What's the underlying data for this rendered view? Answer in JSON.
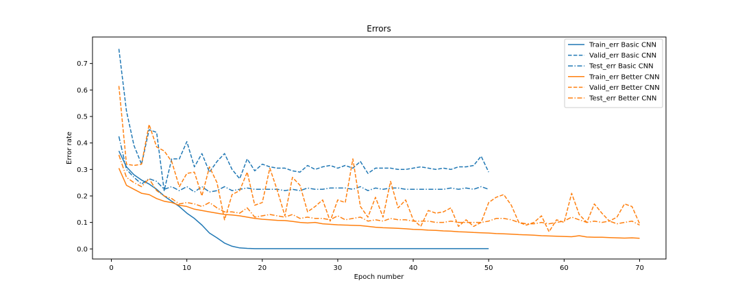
{
  "chart_data": {
    "type": "line",
    "title": "Errors",
    "xlabel": "Epoch number",
    "ylabel": "Error rate",
    "xlim": [
      -2.5,
      73.5
    ],
    "ylim": [
      -0.038,
      0.8
    ],
    "xticks": [
      0,
      10,
      20,
      30,
      40,
      50,
      60,
      70
    ],
    "yticks": [
      0.0,
      0.1,
      0.2,
      0.3,
      0.4,
      0.5,
      0.6,
      0.7
    ],
    "legend_position": "top-right",
    "grid": false,
    "series": [
      {
        "name": "Train_err Basic CNN",
        "color": "#1f77b4",
        "style": "solid",
        "x": [
          1,
          2,
          3,
          4,
          5,
          6,
          7,
          8,
          9,
          10,
          11,
          12,
          13,
          14,
          15,
          16,
          17,
          18,
          19,
          20,
          21,
          22,
          23,
          24,
          25,
          26,
          27,
          28,
          29,
          30,
          31,
          32,
          33,
          34,
          35,
          36,
          37,
          38,
          39,
          40,
          41,
          42,
          43,
          44,
          45,
          46,
          47,
          48,
          49,
          50
        ],
        "values": [
          0.37,
          0.31,
          0.28,
          0.26,
          0.245,
          0.225,
          0.2,
          0.18,
          0.16,
          0.135,
          0.115,
          0.09,
          0.06,
          0.042,
          0.022,
          0.01,
          0.004,
          0.002,
          0.001,
          0.001,
          0.001,
          0.001,
          0.001,
          0.001,
          0.001,
          0.001,
          0.001,
          0.001,
          0.001,
          0.001,
          0.001,
          0.001,
          0.001,
          0.001,
          0.001,
          0.001,
          0.001,
          0.001,
          0.001,
          0.001,
          0.001,
          0.001,
          0.001,
          0.001,
          0.001,
          0.001,
          0.001,
          0.001,
          0.001,
          0.001
        ]
      },
      {
        "name": "Valid_err Basic CNN",
        "color": "#1f77b4",
        "style": "dashed",
        "x": [
          1,
          2,
          3,
          4,
          5,
          6,
          7,
          8,
          9,
          10,
          11,
          12,
          13,
          14,
          15,
          16,
          17,
          18,
          19,
          20,
          21,
          22,
          23,
          24,
          25,
          26,
          27,
          28,
          29,
          30,
          31,
          32,
          33,
          34,
          35,
          36,
          37,
          38,
          39,
          40,
          41,
          42,
          43,
          44,
          45,
          46,
          47,
          48,
          49,
          50
        ],
        "values": [
          0.755,
          0.52,
          0.39,
          0.32,
          0.45,
          0.44,
          0.22,
          0.34,
          0.34,
          0.405,
          0.31,
          0.36,
          0.29,
          0.33,
          0.36,
          0.3,
          0.265,
          0.34,
          0.295,
          0.32,
          0.31,
          0.305,
          0.305,
          0.295,
          0.29,
          0.315,
          0.3,
          0.31,
          0.315,
          0.305,
          0.315,
          0.305,
          0.33,
          0.285,
          0.305,
          0.305,
          0.305,
          0.3,
          0.3,
          0.305,
          0.31,
          0.305,
          0.3,
          0.305,
          0.3,
          0.31,
          0.31,
          0.315,
          0.35,
          0.29
        ]
      },
      {
        "name": "Test_err Basic CNN",
        "color": "#1f77b4",
        "style": "dashdot",
        "x": [
          1,
          2,
          3,
          4,
          5,
          6,
          7,
          8,
          9,
          10,
          11,
          12,
          13,
          14,
          15,
          16,
          17,
          18,
          19,
          20,
          21,
          22,
          23,
          24,
          25,
          26,
          27,
          28,
          29,
          30,
          31,
          32,
          33,
          34,
          35,
          36,
          37,
          38,
          39,
          40,
          41,
          42,
          43,
          44,
          45,
          46,
          47,
          48,
          49,
          50
        ],
        "values": [
          0.425,
          0.3,
          0.27,
          0.245,
          0.265,
          0.255,
          0.225,
          0.235,
          0.22,
          0.235,
          0.215,
          0.235,
          0.215,
          0.22,
          0.235,
          0.22,
          0.225,
          0.23,
          0.225,
          0.225,
          0.225,
          0.225,
          0.22,
          0.225,
          0.22,
          0.23,
          0.225,
          0.225,
          0.23,
          0.23,
          0.23,
          0.225,
          0.235,
          0.22,
          0.23,
          0.225,
          0.23,
          0.23,
          0.225,
          0.225,
          0.225,
          0.225,
          0.225,
          0.225,
          0.23,
          0.225,
          0.23,
          0.225,
          0.235,
          0.225
        ]
      },
      {
        "name": "Train_err Better CNN",
        "color": "#ff7f0e",
        "style": "solid",
        "x": [
          1,
          2,
          3,
          4,
          5,
          6,
          7,
          8,
          9,
          10,
          11,
          12,
          13,
          14,
          15,
          16,
          17,
          18,
          19,
          20,
          21,
          22,
          23,
          24,
          25,
          26,
          27,
          28,
          29,
          30,
          31,
          32,
          33,
          34,
          35,
          36,
          37,
          38,
          39,
          40,
          41,
          42,
          43,
          44,
          45,
          46,
          47,
          48,
          49,
          50,
          51,
          52,
          53,
          54,
          55,
          56,
          57,
          58,
          59,
          60,
          61,
          62,
          63,
          64,
          65,
          66,
          67,
          68,
          69,
          70
        ],
        "values": [
          0.305,
          0.24,
          0.225,
          0.21,
          0.205,
          0.19,
          0.18,
          0.175,
          0.165,
          0.16,
          0.15,
          0.145,
          0.14,
          0.135,
          0.13,
          0.128,
          0.125,
          0.12,
          0.115,
          0.112,
          0.11,
          0.108,
          0.107,
          0.104,
          0.1,
          0.098,
          0.1,
          0.095,
          0.093,
          0.091,
          0.09,
          0.089,
          0.088,
          0.085,
          0.082,
          0.08,
          0.079,
          0.078,
          0.076,
          0.074,
          0.073,
          0.071,
          0.07,
          0.068,
          0.067,
          0.065,
          0.064,
          0.062,
          0.061,
          0.06,
          0.058,
          0.057,
          0.056,
          0.054,
          0.053,
          0.052,
          0.05,
          0.049,
          0.048,
          0.047,
          0.046,
          0.05,
          0.045,
          0.044,
          0.044,
          0.043,
          0.042,
          0.041,
          0.042,
          0.04
        ]
      },
      {
        "name": "Valid_err Better CNN",
        "color": "#ff7f0e",
        "style": "dashed",
        "x": [
          1,
          2,
          3,
          4,
          5,
          6,
          7,
          8,
          9,
          10,
          11,
          12,
          13,
          14,
          15,
          16,
          17,
          18,
          19,
          20,
          21,
          22,
          23,
          24,
          25,
          26,
          27,
          28,
          29,
          30,
          31,
          32,
          33,
          34,
          35,
          36,
          37,
          38,
          39,
          40,
          41,
          42,
          43,
          44,
          45,
          46,
          47,
          48,
          49,
          50,
          51,
          52,
          53,
          54,
          55,
          56,
          57,
          58,
          59,
          60,
          61,
          62,
          63,
          64,
          65,
          66,
          67,
          68,
          69,
          70
        ],
        "values": [
          0.615,
          0.32,
          0.315,
          0.32,
          0.47,
          0.385,
          0.37,
          0.33,
          0.235,
          0.285,
          0.29,
          0.2,
          0.31,
          0.25,
          0.11,
          0.205,
          0.22,
          0.29,
          0.165,
          0.175,
          0.305,
          0.22,
          0.125,
          0.27,
          0.24,
          0.14,
          0.16,
          0.185,
          0.105,
          0.185,
          0.175,
          0.34,
          0.16,
          0.12,
          0.195,
          0.12,
          0.255,
          0.155,
          0.185,
          0.11,
          0.085,
          0.145,
          0.135,
          0.14,
          0.155,
          0.085,
          0.11,
          0.085,
          0.1,
          0.175,
          0.195,
          0.205,
          0.165,
          0.1,
          0.09,
          0.1,
          0.125,
          0.065,
          0.11,
          0.1,
          0.21,
          0.13,
          0.1,
          0.17,
          0.135,
          0.105,
          0.12,
          0.17,
          0.16,
          0.095
        ]
      },
      {
        "name": "Test_err Better CNN",
        "color": "#ff7f0e",
        "style": "dashdot",
        "x": [
          1,
          2,
          3,
          4,
          5,
          6,
          7,
          8,
          9,
          10,
          11,
          12,
          13,
          14,
          15,
          16,
          17,
          18,
          19,
          20,
          21,
          22,
          23,
          24,
          25,
          26,
          27,
          28,
          29,
          30,
          31,
          32,
          33,
          34,
          35,
          36,
          37,
          38,
          39,
          40,
          41,
          42,
          43,
          44,
          45,
          46,
          47,
          48,
          49,
          50,
          51,
          52,
          53,
          54,
          55,
          56,
          57,
          58,
          59,
          60,
          61,
          62,
          63,
          64,
          65,
          66,
          67,
          68,
          69,
          70
        ],
        "values": [
          0.355,
          0.27,
          0.25,
          0.235,
          0.265,
          0.22,
          0.2,
          0.19,
          0.17,
          0.175,
          0.17,
          0.16,
          0.175,
          0.155,
          0.14,
          0.14,
          0.135,
          0.155,
          0.12,
          0.125,
          0.13,
          0.125,
          0.12,
          0.13,
          0.115,
          0.12,
          0.115,
          0.115,
          0.11,
          0.125,
          0.11,
          0.115,
          0.12,
          0.105,
          0.11,
          0.105,
          0.115,
          0.11,
          0.11,
          0.105,
          0.105,
          0.105,
          0.1,
          0.1,
          0.105,
          0.1,
          0.1,
          0.1,
          0.1,
          0.105,
          0.115,
          0.115,
          0.11,
          0.1,
          0.095,
          0.095,
          0.1,
          0.095,
          0.1,
          0.105,
          0.12,
          0.11,
          0.1,
          0.105,
          0.1,
          0.105,
          0.095,
          0.1,
          0.105,
          0.09
        ]
      }
    ]
  }
}
